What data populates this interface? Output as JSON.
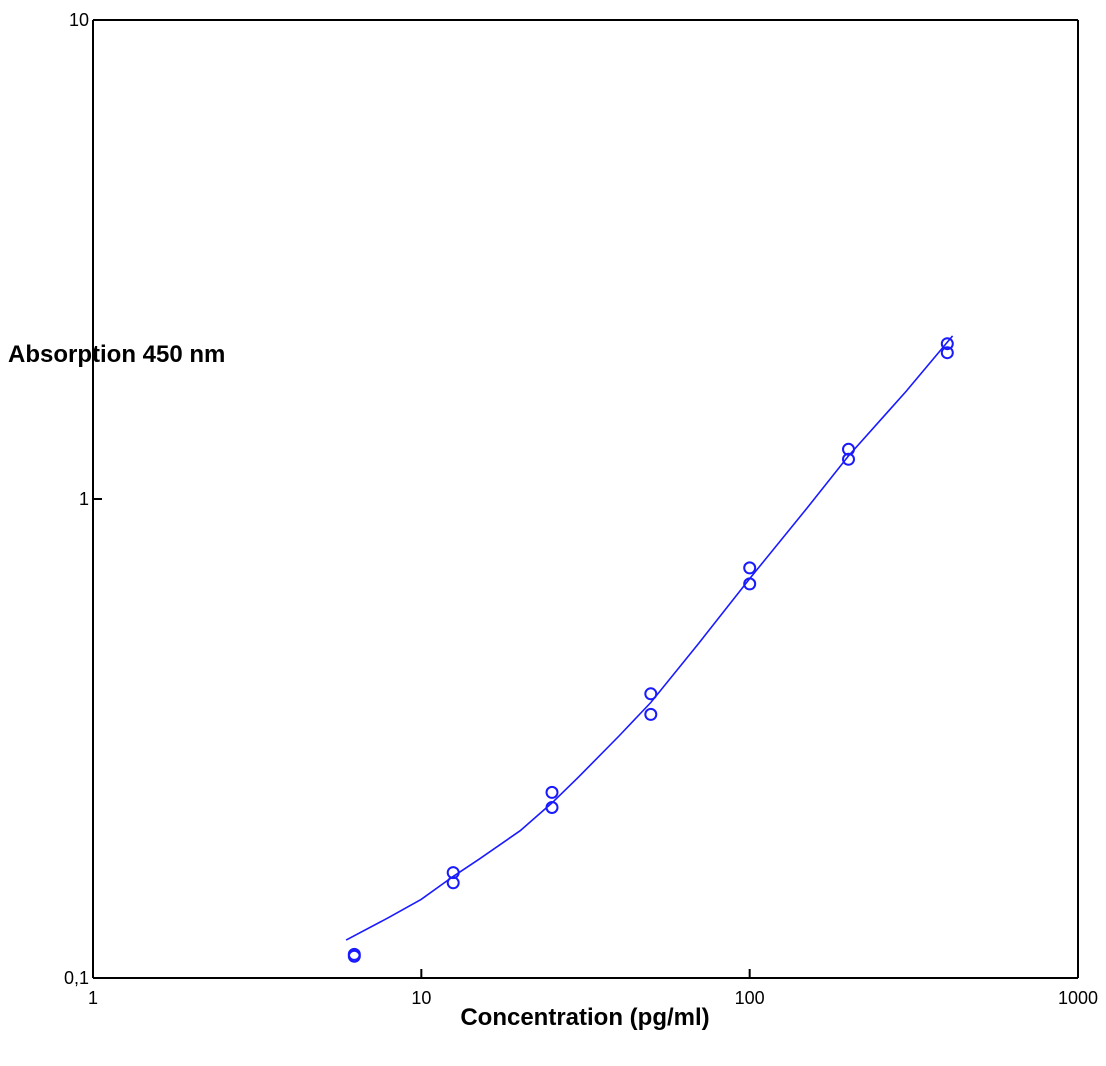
{
  "chart_data": {
    "type": "scatter",
    "title": "",
    "xlabel": "Concentration (pg/ml)",
    "ylabel": "Absorption 450 nm",
    "x_scale": "log",
    "y_scale": "log",
    "xlim": [
      1,
      1000
    ],
    "ylim": [
      0.1,
      10
    ],
    "x_ticks": [
      {
        "value": 1,
        "label": "1"
      },
      {
        "value": 10,
        "label": "10"
      },
      {
        "value": 100,
        "label": "100"
      },
      {
        "value": 1000,
        "label": "1000"
      }
    ],
    "y_ticks": [
      {
        "value": 0.1,
        "label": "0,1"
      },
      {
        "value": 1,
        "label": "1"
      },
      {
        "value": 10,
        "label": "10"
      }
    ],
    "grid": false,
    "legend": "none",
    "series": [
      {
        "kind": "points",
        "marker": "open-circle",
        "color": "#1a1aff",
        "points": [
          {
            "x": 6.25,
            "y": 0.111
          },
          {
            "x": 6.25,
            "y": 0.112
          },
          {
            "x": 12.5,
            "y": 0.158
          },
          {
            "x": 12.5,
            "y": 0.166
          },
          {
            "x": 25,
            "y": 0.227
          },
          {
            "x": 25,
            "y": 0.244
          },
          {
            "x": 50,
            "y": 0.355
          },
          {
            "x": 50,
            "y": 0.392
          },
          {
            "x": 100,
            "y": 0.665
          },
          {
            "x": 100,
            "y": 0.718
          },
          {
            "x": 200,
            "y": 1.21
          },
          {
            "x": 200,
            "y": 1.27
          },
          {
            "x": 400,
            "y": 2.02
          },
          {
            "x": 400,
            "y": 2.11
          }
        ]
      },
      {
        "kind": "fit-curve",
        "color": "#1a1aff",
        "points": [
          {
            "x": 5.9,
            "y": 0.12
          },
          {
            "x": 8,
            "y": 0.134
          },
          {
            "x": 10,
            "y": 0.146
          },
          {
            "x": 12.5,
            "y": 0.163
          },
          {
            "x": 15,
            "y": 0.177
          },
          {
            "x": 20,
            "y": 0.203
          },
          {
            "x": 25,
            "y": 0.232
          },
          {
            "x": 30,
            "y": 0.262
          },
          {
            "x": 40,
            "y": 0.32
          },
          {
            "x": 50,
            "y": 0.376
          },
          {
            "x": 70,
            "y": 0.5
          },
          {
            "x": 100,
            "y": 0.682
          },
          {
            "x": 150,
            "y": 0.96
          },
          {
            "x": 200,
            "y": 1.23
          },
          {
            "x": 300,
            "y": 1.68
          },
          {
            "x": 415,
            "y": 2.19
          }
        ]
      }
    ]
  }
}
